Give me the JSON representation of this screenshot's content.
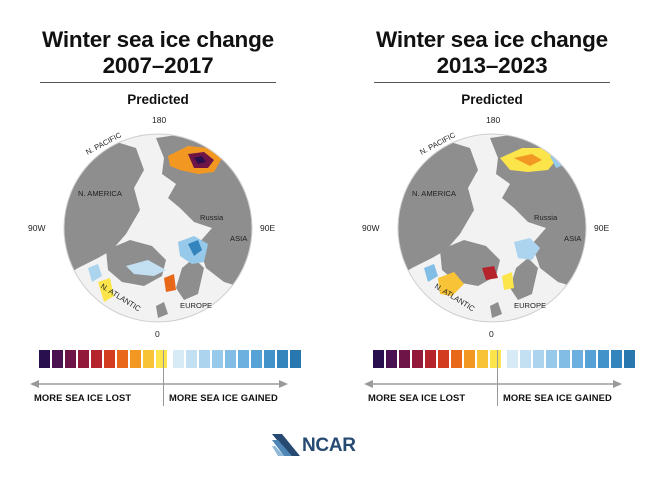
{
  "panels": [
    {
      "title_line1": "Winter sea ice change",
      "title_line2": "2007–2017",
      "subtitle": "Predicted"
    },
    {
      "title_line1": "Winter sea ice change",
      "title_line2": "2013–2023",
      "subtitle": "Predicted"
    }
  ],
  "map_labels": {
    "top": "180",
    "bottom": "0",
    "left": "90W",
    "right": "90E",
    "n_pacific": "N. PACIFIC",
    "n_america": "N. AMERICA",
    "russia": "Russia",
    "asia": "ASIA",
    "n_atlantic": "N. ATLANTIC",
    "europe": "EUROPE"
  },
  "legend": {
    "lost_label": "MORE SEA ICE LOST",
    "gained_label": "MORE SEA ICE GAINED",
    "lost_colors": [
      "#2a0f4e",
      "#4a1250",
      "#6e1446",
      "#93193a",
      "#b5242c",
      "#d33c1f",
      "#e86718",
      "#f29822",
      "#f8c336",
      "#fbe54a"
    ],
    "gained_colors": [
      "#d7ebf7",
      "#c3e0f3",
      "#acd4ee",
      "#97c9ea",
      "#81bde5",
      "#6cb0df",
      "#56a2d6",
      "#4393cb",
      "#3484bd",
      "#2877ae"
    ]
  },
  "logo": {
    "text": "NCAR",
    "color": "#274a73"
  }
}
